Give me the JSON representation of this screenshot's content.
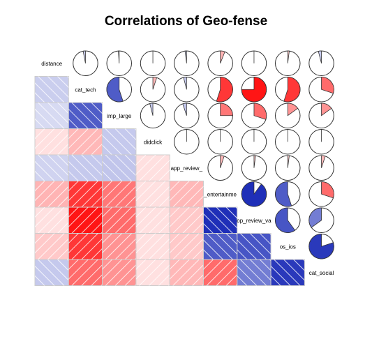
{
  "chart_data": {
    "type": "heatmap",
    "title": "Correlations of Geo-fense",
    "variables": [
      "distance",
      "cat_tech",
      "imp_large",
      "didclick",
      "app_review_",
      "_entertainme",
      "op_review_va",
      "os_ios",
      "cat_social"
    ],
    "lower_panel": "shade",
    "upper_panel": "pie",
    "diagonal": "variable names",
    "color_scale": {
      "negative": "#1f2fb8",
      "zero": "#ffffff",
      "positive": "#ff0000"
    },
    "matrix": [
      [
        1.0,
        -0.03,
        -0.01,
        0.0,
        -0.02,
        0.06,
        0.0,
        0.02,
        -0.04
      ],
      [
        -0.03,
        1.0,
        -0.55,
        0.05,
        -0.04,
        0.55,
        0.75,
        0.55,
        0.3
      ],
      [
        -0.01,
        -0.55,
        1.0,
        -0.04,
        -0.05,
        0.25,
        0.3,
        0.15,
        0.15
      ],
      [
        0.0,
        0.05,
        -0.04,
        1.0,
        0.0,
        0.0,
        0.0,
        0.0,
        0.0
      ],
      [
        -0.02,
        -0.04,
        -0.05,
        0.0,
        1.0,
        0.05,
        0.02,
        0.02,
        0.05
      ],
      [
        0.06,
        0.55,
        0.25,
        0.0,
        0.05,
        1.0,
        -0.9,
        -0.55,
        0.3
      ],
      [
        0.0,
        0.75,
        0.3,
        0.0,
        0.02,
        -0.9,
        1.0,
        -0.6,
        -0.35
      ],
      [
        0.02,
        0.55,
        0.15,
        0.0,
        0.02,
        -0.55,
        -0.6,
        1.0,
        -0.8
      ],
      [
        -0.04,
        0.3,
        0.15,
        0.0,
        0.05,
        0.3,
        -0.35,
        -0.8,
        1.0
      ]
    ]
  }
}
